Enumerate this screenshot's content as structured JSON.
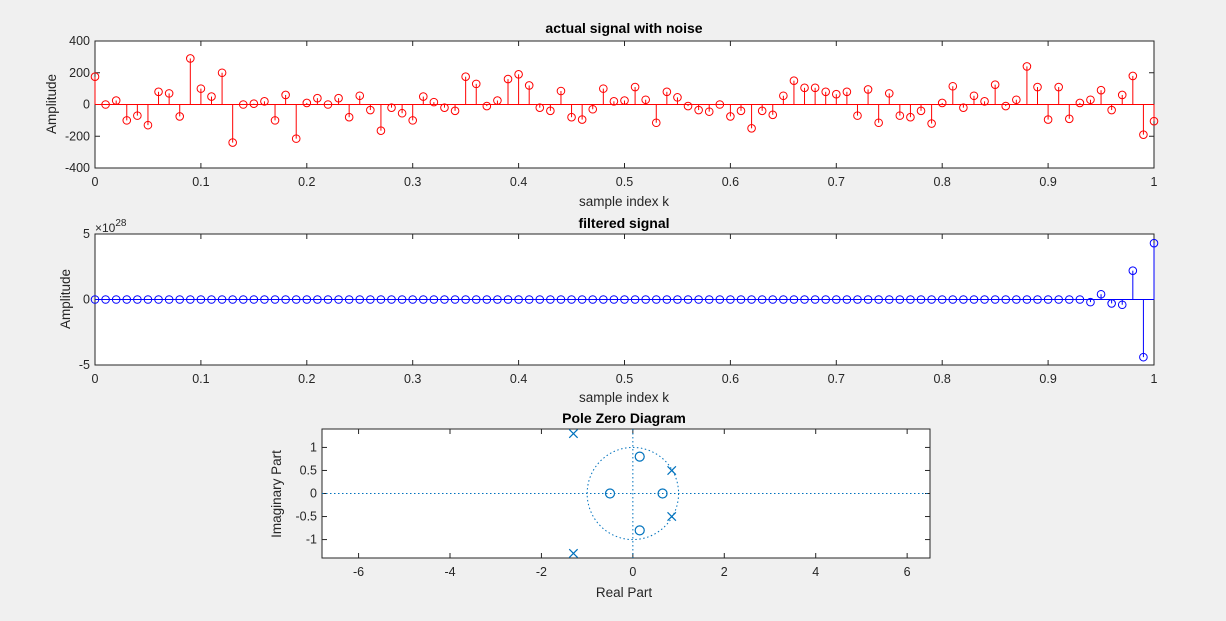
{
  "chart_data": [
    {
      "type": "stem",
      "title": "actual signal with noise",
      "xlabel": "sample index k",
      "ylabel": "Amplitude",
      "xlim": [
        0,
        1
      ],
      "ylim": [
        -400,
        400
      ],
      "xticks": [
        0,
        0.1,
        0.2,
        0.3,
        0.4,
        0.5,
        0.6,
        0.7,
        0.8,
        0.9,
        1
      ],
      "xtick_labels": [
        "0",
        "0.1",
        "0.2",
        "0.3",
        "0.4",
        "0.5",
        "0.6",
        "0.7",
        "0.8",
        "0.9",
        "1"
      ],
      "yticks": [
        -400,
        -200,
        0,
        200,
        400
      ],
      "ytick_labels": [
        "-400",
        "-200",
        "0",
        "200",
        "400"
      ],
      "color": "#ff0000",
      "marker": "circle",
      "x_step": 0.01,
      "values": [
        175,
        0,
        25,
        -100,
        -70,
        -130,
        80,
        70,
        -75,
        290,
        100,
        50,
        200,
        -240,
        0,
        5,
        20,
        -100,
        60,
        -215,
        10,
        40,
        0,
        40,
        -80,
        55,
        -35,
        -165,
        -20,
        -55,
        -100,
        50,
        15,
        -20,
        -40,
        175,
        130,
        -10,
        25,
        160,
        190,
        120,
        -20,
        -40,
        85,
        -80,
        -95,
        -30,
        100,
        20,
        25,
        110,
        30,
        -115,
        80,
        45,
        -10,
        -35,
        -45,
        0,
        -75,
        -40,
        -150,
        -40,
        -65,
        55,
        150,
        105,
        105,
        80,
        65,
        80,
        -70,
        95,
        -115,
        70,
        -70,
        -80,
        -40,
        -120,
        10,
        115,
        -20,
        55,
        20,
        125,
        -10,
        30,
        240,
        110,
        -95,
        110,
        -90,
        10,
        30,
        90,
        -35,
        60,
        180,
        -190,
        -105
      ]
    },
    {
      "type": "stem",
      "title": "filtered signal",
      "xlabel": "sample index k",
      "ylabel": "Amplitude",
      "y_exponent_label": "×10",
      "y_exponent_value": "28",
      "xlim": [
        0,
        1
      ],
      "ylim": [
        -5,
        5
      ],
      "xticks": [
        0,
        0.1,
        0.2,
        0.3,
        0.4,
        0.5,
        0.6,
        0.7,
        0.8,
        0.9,
        1
      ],
      "xtick_labels": [
        "0",
        "0.1",
        "0.2",
        "0.3",
        "0.4",
        "0.5",
        "0.6",
        "0.7",
        "0.8",
        "0.9",
        "1"
      ],
      "yticks": [
        -5,
        0,
        5
      ],
      "ytick_labels": [
        "-5",
        "0",
        "5"
      ],
      "color": "#0000ff",
      "marker": "circle",
      "x_step": 0.01,
      "values_last_nonzero": {
        "x": [
          0.94,
          0.95,
          0.96,
          0.97,
          0.98,
          0.99,
          1.0
        ],
        "y": [
          -0.2,
          0.4,
          -0.3,
          -0.4,
          2.2,
          -4.4,
          4.3
        ]
      }
    },
    {
      "type": "pole-zero",
      "title": "Pole Zero Diagram",
      "xlabel": "Real Part",
      "ylabel": "Imaginary Part",
      "xlim": [
        -6.8,
        6.5
      ],
      "ylim": [
        -1.4,
        1.4
      ],
      "xticks": [
        -6,
        -4,
        -2,
        0,
        2,
        4,
        6
      ],
      "xtick_labels": [
        "-6",
        "-4",
        "-2",
        "0",
        "2",
        "4",
        "6"
      ],
      "yticks": [
        -1,
        -0.5,
        0,
        0.5,
        1
      ],
      "ytick_labels": [
        "-1",
        "-0.5",
        "0",
        "0.5",
        "1"
      ],
      "color": "#0072bd",
      "zeros": [
        [
          0.15,
          0.8
        ],
        [
          -0.5,
          0
        ],
        [
          0.65,
          0
        ],
        [
          0.15,
          -0.8
        ]
      ],
      "poles": [
        [
          -1.3,
          1.3
        ],
        [
          0.85,
          0.5
        ],
        [
          0.85,
          -0.5
        ],
        [
          -1.3,
          -1.3
        ]
      ]
    }
  ]
}
